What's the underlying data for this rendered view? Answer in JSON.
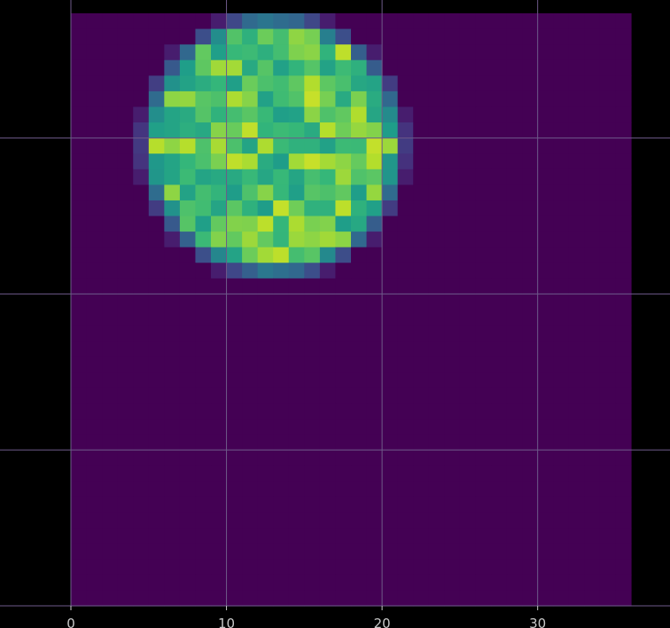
{
  "chart_data": {
    "type": "heatmap",
    "title": "",
    "xlabel": "",
    "ylabel": "",
    "colormap": "viridis",
    "background_color": "#000000",
    "grid": true,
    "grid_color": "#6e5a8a",
    "xlim": [
      0,
      36
    ],
    "ylim": [
      0,
      38
    ],
    "x_ticks": [
      0,
      10,
      20,
      30
    ],
    "x_tick_labels": [
      "0",
      "10",
      "20",
      "30"
    ],
    "y_ticks": [
      8,
      18,
      28
    ],
    "y_tick_labels": [],
    "blob": {
      "center": [
        13,
        8.5
      ],
      "radius": 8.3,
      "value_min": 0.55,
      "value_max": 0.92
    },
    "background_value": 0
  }
}
